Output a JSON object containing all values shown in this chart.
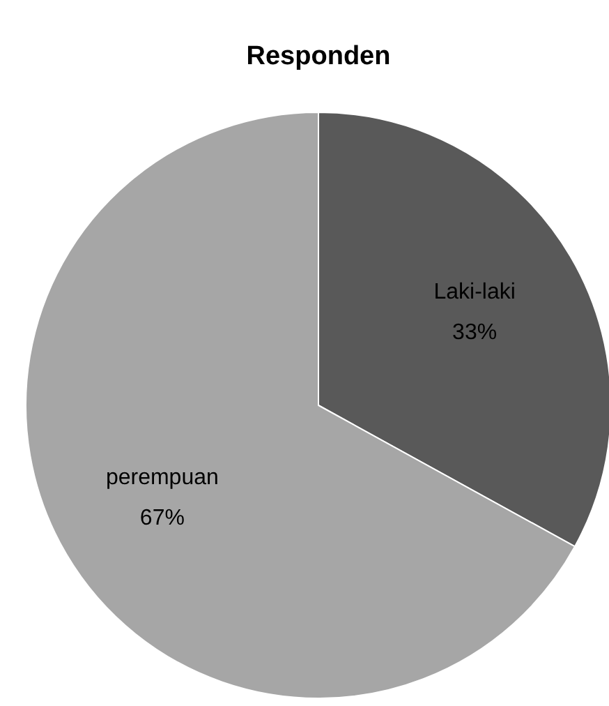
{
  "chart_data": {
    "type": "pie",
    "title": "Responden",
    "categories": [
      "Laki-laki",
      "perempuan"
    ],
    "values": [
      33,
      67
    ],
    "colors": [
      "#595959",
      "#a6a6a6"
    ],
    "value_labels": [
      "33%",
      "67%"
    ]
  }
}
